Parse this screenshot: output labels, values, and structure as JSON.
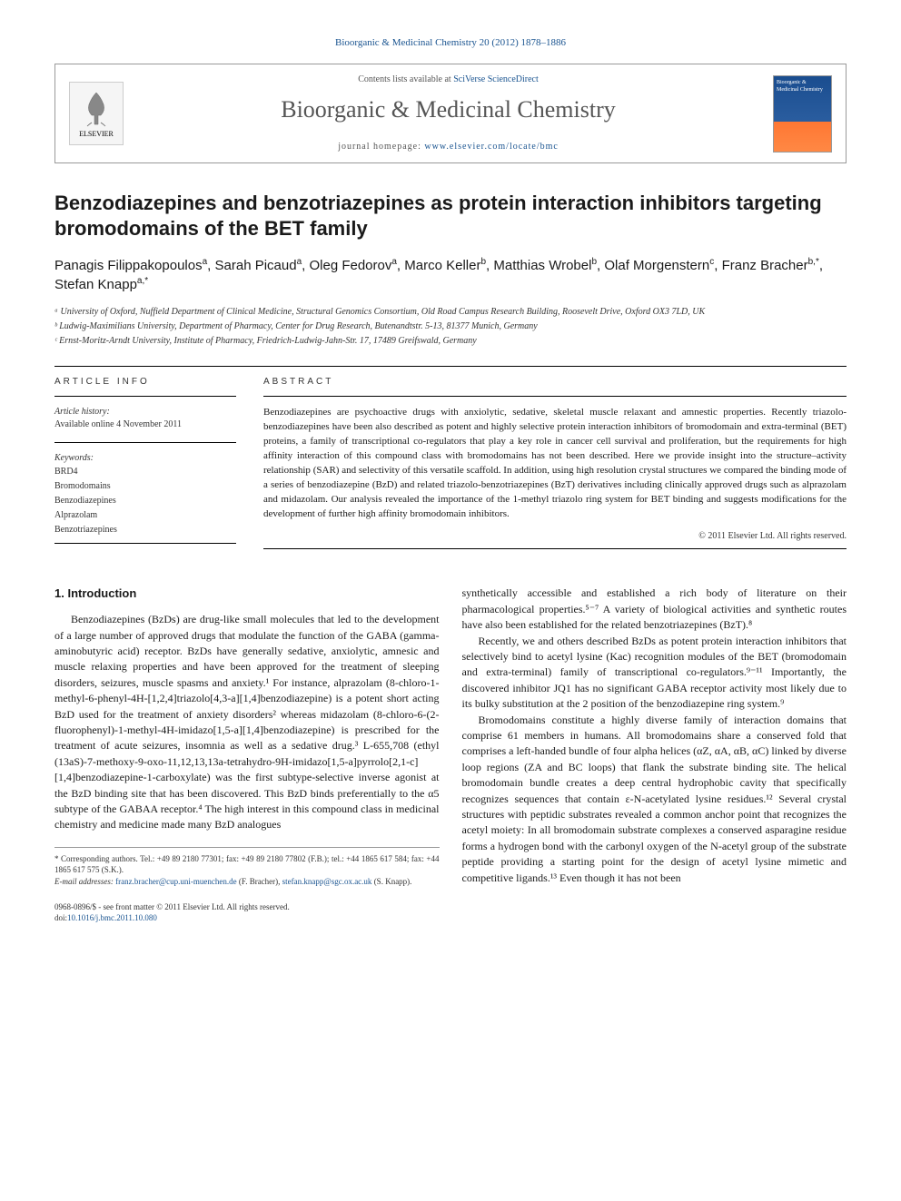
{
  "citation": "Bioorganic & Medicinal Chemistry 20 (2012) 1878–1886",
  "contentsText": "Contents lists available at",
  "contentsLink": "SciVerse ScienceDirect",
  "journalName": "Bioorganic & Medicinal Chemistry",
  "homepageLabel": "journal homepage:",
  "homepageUrl": "www.elsevier.com/locate/bmc",
  "elsevierLabel": "ELSEVIER",
  "thumbLabel": "Bioorganic & Medicinal Chemistry",
  "title": "Benzodiazepines and benzotriazepines as protein interaction inhibitors targeting bromodomains of the BET family",
  "authorsHtml": "Panagis Filippakopoulos<sup>a</sup>, Sarah Picaud<sup>a</sup>, Oleg Fedorov<sup>a</sup>, Marco Keller<sup>b</sup>, Matthias Wrobel<sup>b</sup>, Olaf Morgenstern<sup>c</sup>, Franz Bracher<sup>b,*</sup>, Stefan Knapp<sup>a,*</sup>",
  "affiliations": [
    "ᵃ University of Oxford, Nuffield Department of Clinical Medicine, Structural Genomics Consortium, Old Road Campus Research Building, Roosevelt Drive, Oxford OX3 7LD, UK",
    "ᵇ Ludwig-Maximilians University, Department of Pharmacy, Center for Drug Research, Butenandtstr. 5-13, 81377 Munich, Germany",
    "ᶜ Ernst-Moritz-Arndt University, Institute of Pharmacy, Friedrich-Ludwig-Jahn-Str. 17, 17489 Greifswald, Germany"
  ],
  "articleInfoHeading": "ARTICLE INFO",
  "historyLabel": "Article history:",
  "historyText": "Available online 4 November 2011",
  "keywordsLabel": "Keywords:",
  "keywords": [
    "BRD4",
    "Bromodomains",
    "Benzodiazepines",
    "Alprazolam",
    "Benzotriazepines"
  ],
  "abstractHeading": "ABSTRACT",
  "abstractText": "Benzodiazepines are psychoactive drugs with anxiolytic, sedative, skeletal muscle relaxant and amnestic properties. Recently triazolo-benzodiazepines have been also described as potent and highly selective protein interaction inhibitors of bromodomain and extra-terminal (BET) proteins, a family of transcriptional co-regulators that play a key role in cancer cell survival and proliferation, but the requirements for high affinity interaction of this compound class with bromodomains has not been described. Here we provide insight into the structure–activity relationship (SAR) and selectivity of this versatile scaffold. In addition, using high resolution crystal structures we compared the binding mode of a series of benzodiazepine (BzD) and related triazolo-benzotriazepines (BzT) derivatives including clinically approved drugs such as alprazolam and midazolam. Our analysis revealed the importance of the 1-methyl triazolo ring system for BET binding and suggests modifications for the development of further high affinity bromodomain inhibitors.",
  "copyrightText": "© 2011 Elsevier Ltd. All rights reserved.",
  "introHeading": "1. Introduction",
  "col1p1": "Benzodiazepines (BzDs) are drug-like small molecules that led to the development of a large number of approved drugs that modulate the function of the GABA (gamma-aminobutyric acid) receptor. BzDs have generally sedative, anxiolytic, amnesic and muscle relaxing properties and have been approved for the treatment of sleeping disorders, seizures, muscle spasms and anxiety.¹ For instance, alprazolam (8-chloro-1-methyl-6-phenyl-4H-[1,2,4]triazolo[4,3-a][1,4]benzodiazepine) is a potent short acting BzD used for the treatment of anxiety disorders² whereas midazolam (8-chloro-6-(2-fluorophenyl)-1-methyl-4H-imidazo[1,5-a][1,4]benzodiazepine) is prescribed for the treatment of acute seizures, insomnia as well as a sedative drug.³ L-655,708 (ethyl (13aS)-7-methoxy-9-oxo-11,12,13,13a-tetrahydro-9H-imidazo[1,5-a]pyrrolo[2,1-c][1,4]benzodiazepine-1-carboxylate) was the first subtype-selective inverse agonist at the BzD binding site that has been discovered. This BzD binds preferentially to the α5 subtype of the GABAA receptor.⁴ The high interest in this compound class in medicinal chemistry and medicine made many BzD analogues",
  "col2p1": "synthetically accessible and established a rich body of literature on their pharmacological properties.⁵⁻⁷ A variety of biological activities and synthetic routes have also been established for the related benzotriazepines (BzT).⁸",
  "col2p2": "Recently, we and others described BzDs as potent protein interaction inhibitors that selectively bind to acetyl lysine (Kac) recognition modules of the BET (bromodomain and extra-terminal) family of transcriptional co-regulators.⁹⁻¹¹ Importantly, the discovered inhibitor JQ1 has no significant GABA receptor activity most likely due to its bulky substitution at the 2 position of the benzodiazepine ring system.⁹",
  "col2p3": "Bromodomains constitute a highly diverse family of interaction domains that comprise 61 members in humans. All bromodomains share a conserved fold that comprises a left-handed bundle of four alpha helices (αZ, αA, αB, αC) linked by diverse loop regions (ZA and BC loops) that flank the substrate binding site. The helical bromodomain bundle creates a deep central hydrophobic cavity that specifically recognizes sequences that contain ε-N-acetylated lysine residues.¹² Several crystal structures with peptidic substrates revealed a common anchor point that recognizes the acetyl moiety: In all bromodomain substrate complexes a conserved asparagine residue forms a hydrogen bond with the carbonyl oxygen of the N-acetyl group of the substrate peptide providing a starting point for the design of acetyl lysine mimetic and competitive ligands.¹³ Even though it has not been",
  "corresp": "* Corresponding authors. Tel.: +49 89 2180 77301; fax: +49 89 2180 77802 (F.B.); tel.: +44 1865 617 584; fax: +44 1865 617 575 (S.K.).",
  "emailLabel": "E-mail addresses:",
  "email1": "franz.bracher@cup.uni-muenchen.de",
  "email1name": "(F. Bracher),",
  "email2": "stefan.knapp@sgc.ox.ac.uk",
  "email2name": "(S. Knapp).",
  "issn": "0968-0896/$ - see front matter © 2011 Elsevier Ltd. All rights reserved.",
  "doiLabel": "doi:",
  "doi": "10.1016/j.bmc.2011.10.080",
  "colors": {
    "link": "#1a5490",
    "text": "#1a1a1a",
    "muted": "#555"
  }
}
